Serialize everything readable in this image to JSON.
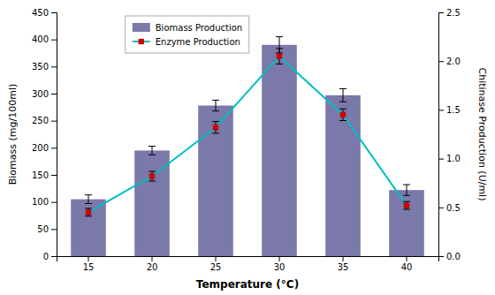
{
  "chart_data": {
    "type": "bar",
    "categories": [
      15,
      20,
      25,
      30,
      35,
      40
    ],
    "xlabel": "Temperature (°C)",
    "ylabel": "Biomass (mg/100ml)",
    "y2label": "Chitinase Production (U/ml)",
    "ylim": [
      0,
      450
    ],
    "yticks": [
      0,
      50,
      100,
      150,
      200,
      250,
      300,
      350,
      400,
      450
    ],
    "y2lim": [
      0,
      2.5
    ],
    "y2ticks": [
      {
        "value": 0,
        "label": "0.0"
      },
      0.5,
      {
        "value": 1.0,
        "label": "1.0"
      },
      1.5,
      {
        "value": 2.0,
        "label": "2.0"
      },
      2.5
    ],
    "grid": false,
    "legend": "upper left",
    "series": [
      {
        "name": "Biomass Production",
        "type": "bar",
        "color": "#7B78AA",
        "values": [
          105,
          195,
          278,
          390,
          297,
          122
        ],
        "errors": [
          8,
          8,
          10,
          15,
          12,
          10
        ]
      },
      {
        "name": "Enzyme Production",
        "type": "line",
        "axis": "y2",
        "color": "#00BFBF",
        "marker": "square",
        "colors": [
          "#CC0000",
          "#CC0000",
          "#CC0000",
          "#CC0000",
          "#CC0000",
          "#CC0000"
        ],
        "values": [
          0.45,
          0.82,
          1.32,
          2.05,
          1.45,
          0.52
        ],
        "errors": [
          0.04,
          0.05,
          0.06,
          0.08,
          0.06,
          0.04
        ]
      }
    ]
  }
}
